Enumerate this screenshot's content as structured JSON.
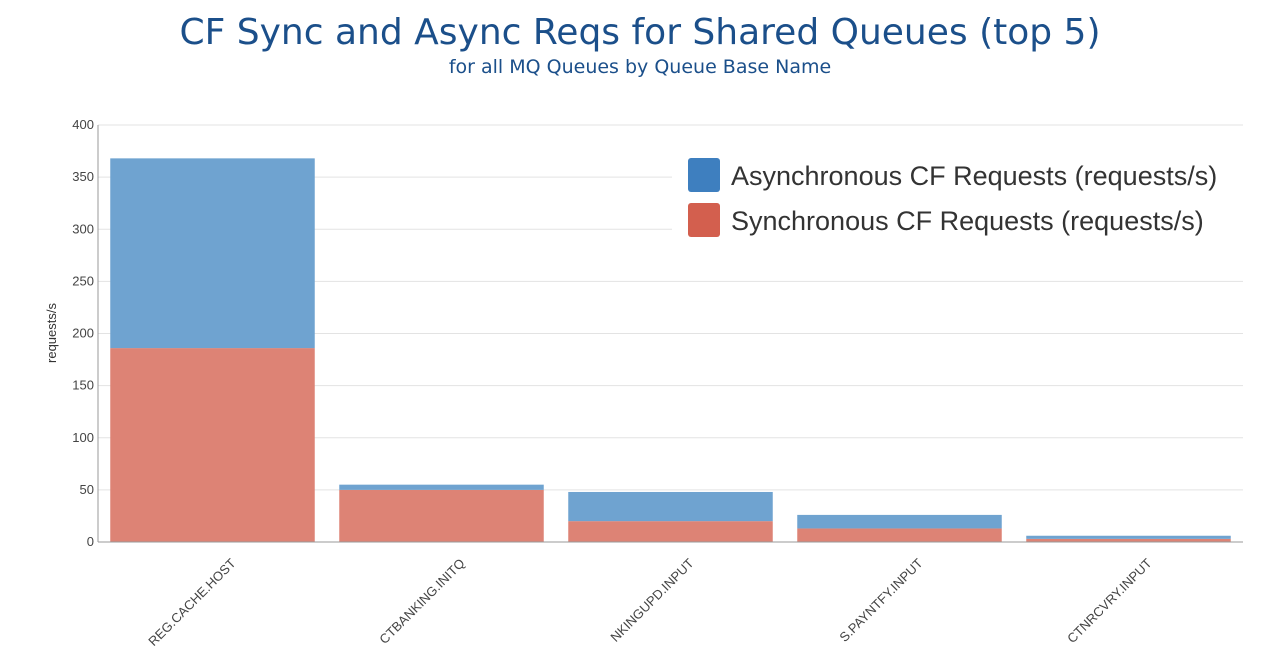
{
  "chart_data": {
    "type": "bar",
    "stacked": true,
    "title": "CF Sync and Async Reqs for Shared Queues (top 5)",
    "subtitle": "for all MQ Queues by Queue Base Name",
    "xlabel": "",
    "ylabel": "requests/s",
    "ylim": [
      0,
      400
    ],
    "yticks": [
      0,
      50,
      100,
      150,
      200,
      250,
      300,
      350,
      400
    ],
    "grid": true,
    "legend_position": "top-right",
    "categories": [
      "REG.CACHE.HOST",
      "CTBANKING.INITQ",
      "NKINGUPD.INPUT",
      "S.PAYNTFY.INPUT",
      "CTNRCVRY.INPUT"
    ],
    "series": [
      {
        "name": "Synchronous CF Requests (requests/s)",
        "color": "#dd8375",
        "legend_color": "#d35f4e",
        "values": [
          186,
          50,
          20,
          13,
          3
        ]
      },
      {
        "name": "Asynchronous CF Requests (requests/s)",
        "color": "#6fa3d0",
        "legend_color": "#3e7fbf",
        "values": [
          182,
          5,
          28,
          13,
          3
        ]
      }
    ]
  }
}
